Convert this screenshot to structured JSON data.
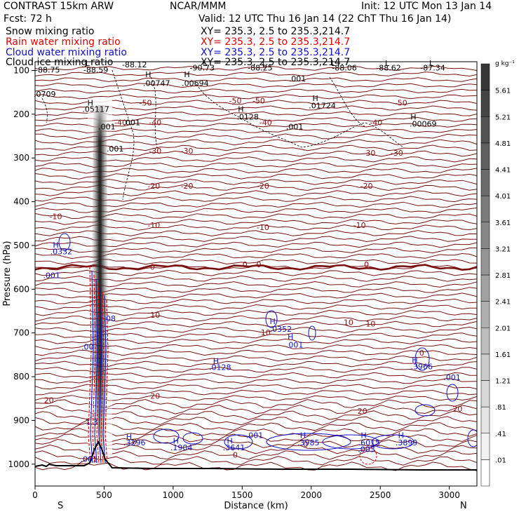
{
  "header": {
    "model": "CONTRAST 15km ARW",
    "center": "NCAR/MMM",
    "init": "Init: 12 UTC Mon 13 Jan 14",
    "fcst": "Fcst:   72 h",
    "valid": "Valid: 12 UTC Thu 16 Jan 14 (22 ChT Thu 16 Jan 14)"
  },
  "legend": [
    {
      "field": "Snow mixing ratio",
      "xy": "XY= 235.3,  2.5 to 235.3,214.7",
      "color": "#000000"
    },
    {
      "field": "Rain water mixing ratio",
      "xy": "XY= 235.3,  2.5 to 235.3,214.7",
      "color": "#e00000"
    },
    {
      "field": "Cloud water mixing ratio",
      "xy": "XY= 235.3,  2.5 to 235.3,214.7",
      "color": "#1010d0"
    },
    {
      "field": "Cloud ice mixing ratio",
      "xy": "XY= 235.3,  2.5 to 235.3,214.7",
      "color": "#000000"
    }
  ],
  "chart_data": {
    "type": "heatmap",
    "xlabel": "Distance (km)",
    "ylabel": "Pressure (hPa)",
    "xlim": [
      0,
      3200
    ],
    "ylim": [
      1050,
      80
    ],
    "x_ticks": [
      0,
      500,
      1000,
      1500,
      2000,
      2500,
      3000
    ],
    "y_ticks": [
      100,
      200,
      300,
      400,
      500,
      600,
      700,
      800,
      900,
      1000
    ],
    "x_end_labels": {
      "left": "S",
      "right": "N"
    },
    "colorbar": {
      "unit": "g kg⁻¹",
      "levels": [
        ".01",
        ".41",
        ".81",
        "1.21",
        "1.61",
        "2.01",
        "2.41",
        "2.81",
        "3.21",
        "3.61",
        "4.01",
        "4.41",
        "4.81",
        "5.21",
        "5.61"
      ]
    },
    "isotherm_labels": [
      {
        "text": "-50",
        "x": 800,
        "p": 180
      },
      {
        "text": "-50",
        "x": 1450,
        "p": 175
      },
      {
        "text": "-50",
        "x": 1620,
        "p": 175
      },
      {
        "text": "-50",
        "x": 2650,
        "p": 180
      },
      {
        "text": "-40",
        "x": 620,
        "p": 225
      },
      {
        "text": "-40",
        "x": 870,
        "p": 225
      },
      {
        "text": "-40",
        "x": 1670,
        "p": 225
      },
      {
        "text": "-40",
        "x": 2470,
        "p": 225
      },
      {
        "text": "-30",
        "x": 870,
        "p": 290
      },
      {
        "text": "-30",
        "x": 1100,
        "p": 290
      },
      {
        "text": "-30",
        "x": 2420,
        "p": 295
      },
      {
        "text": "-30",
        "x": 2620,
        "p": 295
      },
      {
        "text": "-20",
        "x": 860,
        "p": 370
      },
      {
        "text": "-20",
        "x": 1100,
        "p": 370
      },
      {
        "text": "-20",
        "x": 1650,
        "p": 370
      },
      {
        "text": "-20",
        "x": 2400,
        "p": 370
      },
      {
        "text": "-10",
        "x": 150,
        "p": 440
      },
      {
        "text": "-10",
        "x": 860,
        "p": 460
      },
      {
        "text": "-10",
        "x": 1650,
        "p": 465
      },
      {
        "text": "-10",
        "x": 2350,
        "p": 460
      },
      {
        "text": "0",
        "x": 850,
        "p": 555
      },
      {
        "text": "0",
        "x": 1520,
        "p": 550
      },
      {
        "text": "0",
        "x": 1620,
        "p": 550
      },
      {
        "text": "0",
        "x": 2400,
        "p": 550
      },
      {
        "text": "10",
        "x": 870,
        "p": 665
      },
      {
        "text": "10",
        "x": 1670,
        "p": 705
      },
      {
        "text": "10",
        "x": 2270,
        "p": 682
      },
      {
        "text": "10",
        "x": 2430,
        "p": 685
      },
      {
        "text": "20",
        "x": 100,
        "p": 860
      },
      {
        "text": "20",
        "x": 870,
        "p": 850
      },
      {
        "text": "20",
        "x": 2370,
        "p": 885
      },
      {
        "text": "20",
        "x": 3060,
        "p": 880
      },
      {
        "text": "0",
        "x": 720,
        "p": 955
      },
      {
        "text": "0",
        "x": 1450,
        "p": 985
      },
      {
        "text": "0",
        "x": 1960,
        "p": 960
      },
      {
        "text": "0",
        "x": 2800,
        "p": 752
      }
    ],
    "extrema_labels": [
      {
        "text": "L",
        "x": 380,
        "p": 90
      },
      {
        "text": "L",
        "x": 1230,
        "p": 90
      },
      {
        "text": "L",
        "x": 2160,
        "p": 90
      },
      {
        "text": "L",
        "x": 2550,
        "p": 90
      },
      {
        "text": "L",
        "x": 2870,
        "p": 90
      },
      {
        "text": "L",
        "x": 1660,
        "p": 92
      },
      {
        "text": "-88.75",
        "x": 90,
        "p": 105
      },
      {
        "text": "-88.59",
        "x": 440,
        "p": 105
      },
      {
        "text": "-88.12",
        "x": 720,
        "p": 93
      },
      {
        "text": "-90.73",
        "x": 1210,
        "p": 100
      },
      {
        "text": "-88.25",
        "x": 1630,
        "p": 100
      },
      {
        "text": "-88.06",
        "x": 2240,
        "p": 100
      },
      {
        "text": "-88.62",
        "x": 2560,
        "p": 100
      },
      {
        "text": "-87.34",
        "x": 2880,
        "p": 100
      },
      {
        "text": "H",
        "x": 820,
        "p": 115
      },
      {
        "text": "H",
        "x": 1100,
        "p": 115
      },
      {
        "text": ".00747",
        "x": 880,
        "p": 135
      },
      {
        "text": ".00694",
        "x": 1160,
        "p": 135
      },
      {
        "text": ".001",
        "x": 1900,
        "p": 125
      },
      {
        "text": ".0709",
        "x": 70,
        "p": 160
      },
      {
        "text": "H",
        "x": 400,
        "p": 180
      },
      {
        "text": ".05117",
        "x": 440,
        "p": 195
      },
      {
        "text": "H",
        "x": 2030,
        "p": 170
      },
      {
        "text": ".01724",
        "x": 2080,
        "p": 187
      },
      {
        "text": "H",
        "x": 1490,
        "p": 195
      },
      {
        "text": ".0128",
        "x": 1540,
        "p": 212
      },
      {
        "text": "H",
        "x": 2740,
        "p": 212
      },
      {
        "text": ".00069",
        "x": 2810,
        "p": 228
      },
      {
        "text": ".001",
        "x": 520,
        "p": 235
      },
      {
        "text": ".001",
        "x": 700,
        "p": 225
      },
      {
        "text": ".001",
        "x": 1880,
        "p": 235
      },
      {
        "text": ".001",
        "x": 580,
        "p": 285
      },
      {
        "text": "H",
        "x": 150,
        "p": 505
      },
      {
        "text": ".0332",
        "x": 190,
        "p": 520
      },
      {
        "text": ".001",
        "x": 120,
        "p": 575
      },
      {
        "text": ".08",
        "x": 540,
        "p": 673
      },
      {
        "text": ".00",
        "x": 380,
        "p": 738
      },
      {
        "text": "H",
        "x": 1720,
        "p": 680
      },
      {
        "text": ".0352",
        "x": 1780,
        "p": 697
      },
      {
        "text": "H",
        "x": 1850,
        "p": 715
      },
      {
        "text": ".001",
        "x": 1880,
        "p": 733
      },
      {
        "text": "H",
        "x": 1310,
        "p": 770
      },
      {
        "text": ".0128",
        "x": 1340,
        "p": 785
      },
      {
        "text": "H",
        "x": 2750,
        "p": 768
      },
      {
        "text": ".3966",
        "x": 2800,
        "p": 783
      },
      {
        "text": ".001",
        "x": 3020,
        "p": 808
      },
      {
        "text": "H",
        "x": 680,
        "p": 943
      },
      {
        "text": ".3296",
        "x": 720,
        "p": 957
      },
      {
        "text": "H",
        "x": 1020,
        "p": 953
      },
      {
        "text": ".1904",
        "x": 1060,
        "p": 968
      },
      {
        "text": "H",
        "x": 1410,
        "p": 953
      },
      {
        "text": ".3641",
        "x": 1440,
        "p": 968
      },
      {
        "text": ".001",
        "x": 1590,
        "p": 940
      },
      {
        "text": "H",
        "x": 1940,
        "p": 940
      },
      {
        "text": ".3985",
        "x": 1980,
        "p": 957
      },
      {
        "text": "H",
        "x": 2380,
        "p": 940
      },
      {
        "text": ".6015",
        "x": 2420,
        "p": 957
      },
      {
        "text": ".003",
        "x": 2400,
        "p": 972
      },
      {
        "text": "H",
        "x": 2650,
        "p": 940
      },
      {
        "text": ".3899",
        "x": 2690,
        "p": 957
      },
      {
        "text": "1.3",
        "x": 410,
        "p": 910
      },
      {
        "text": ".001",
        "x": 390,
        "p": 995
      }
    ]
  }
}
